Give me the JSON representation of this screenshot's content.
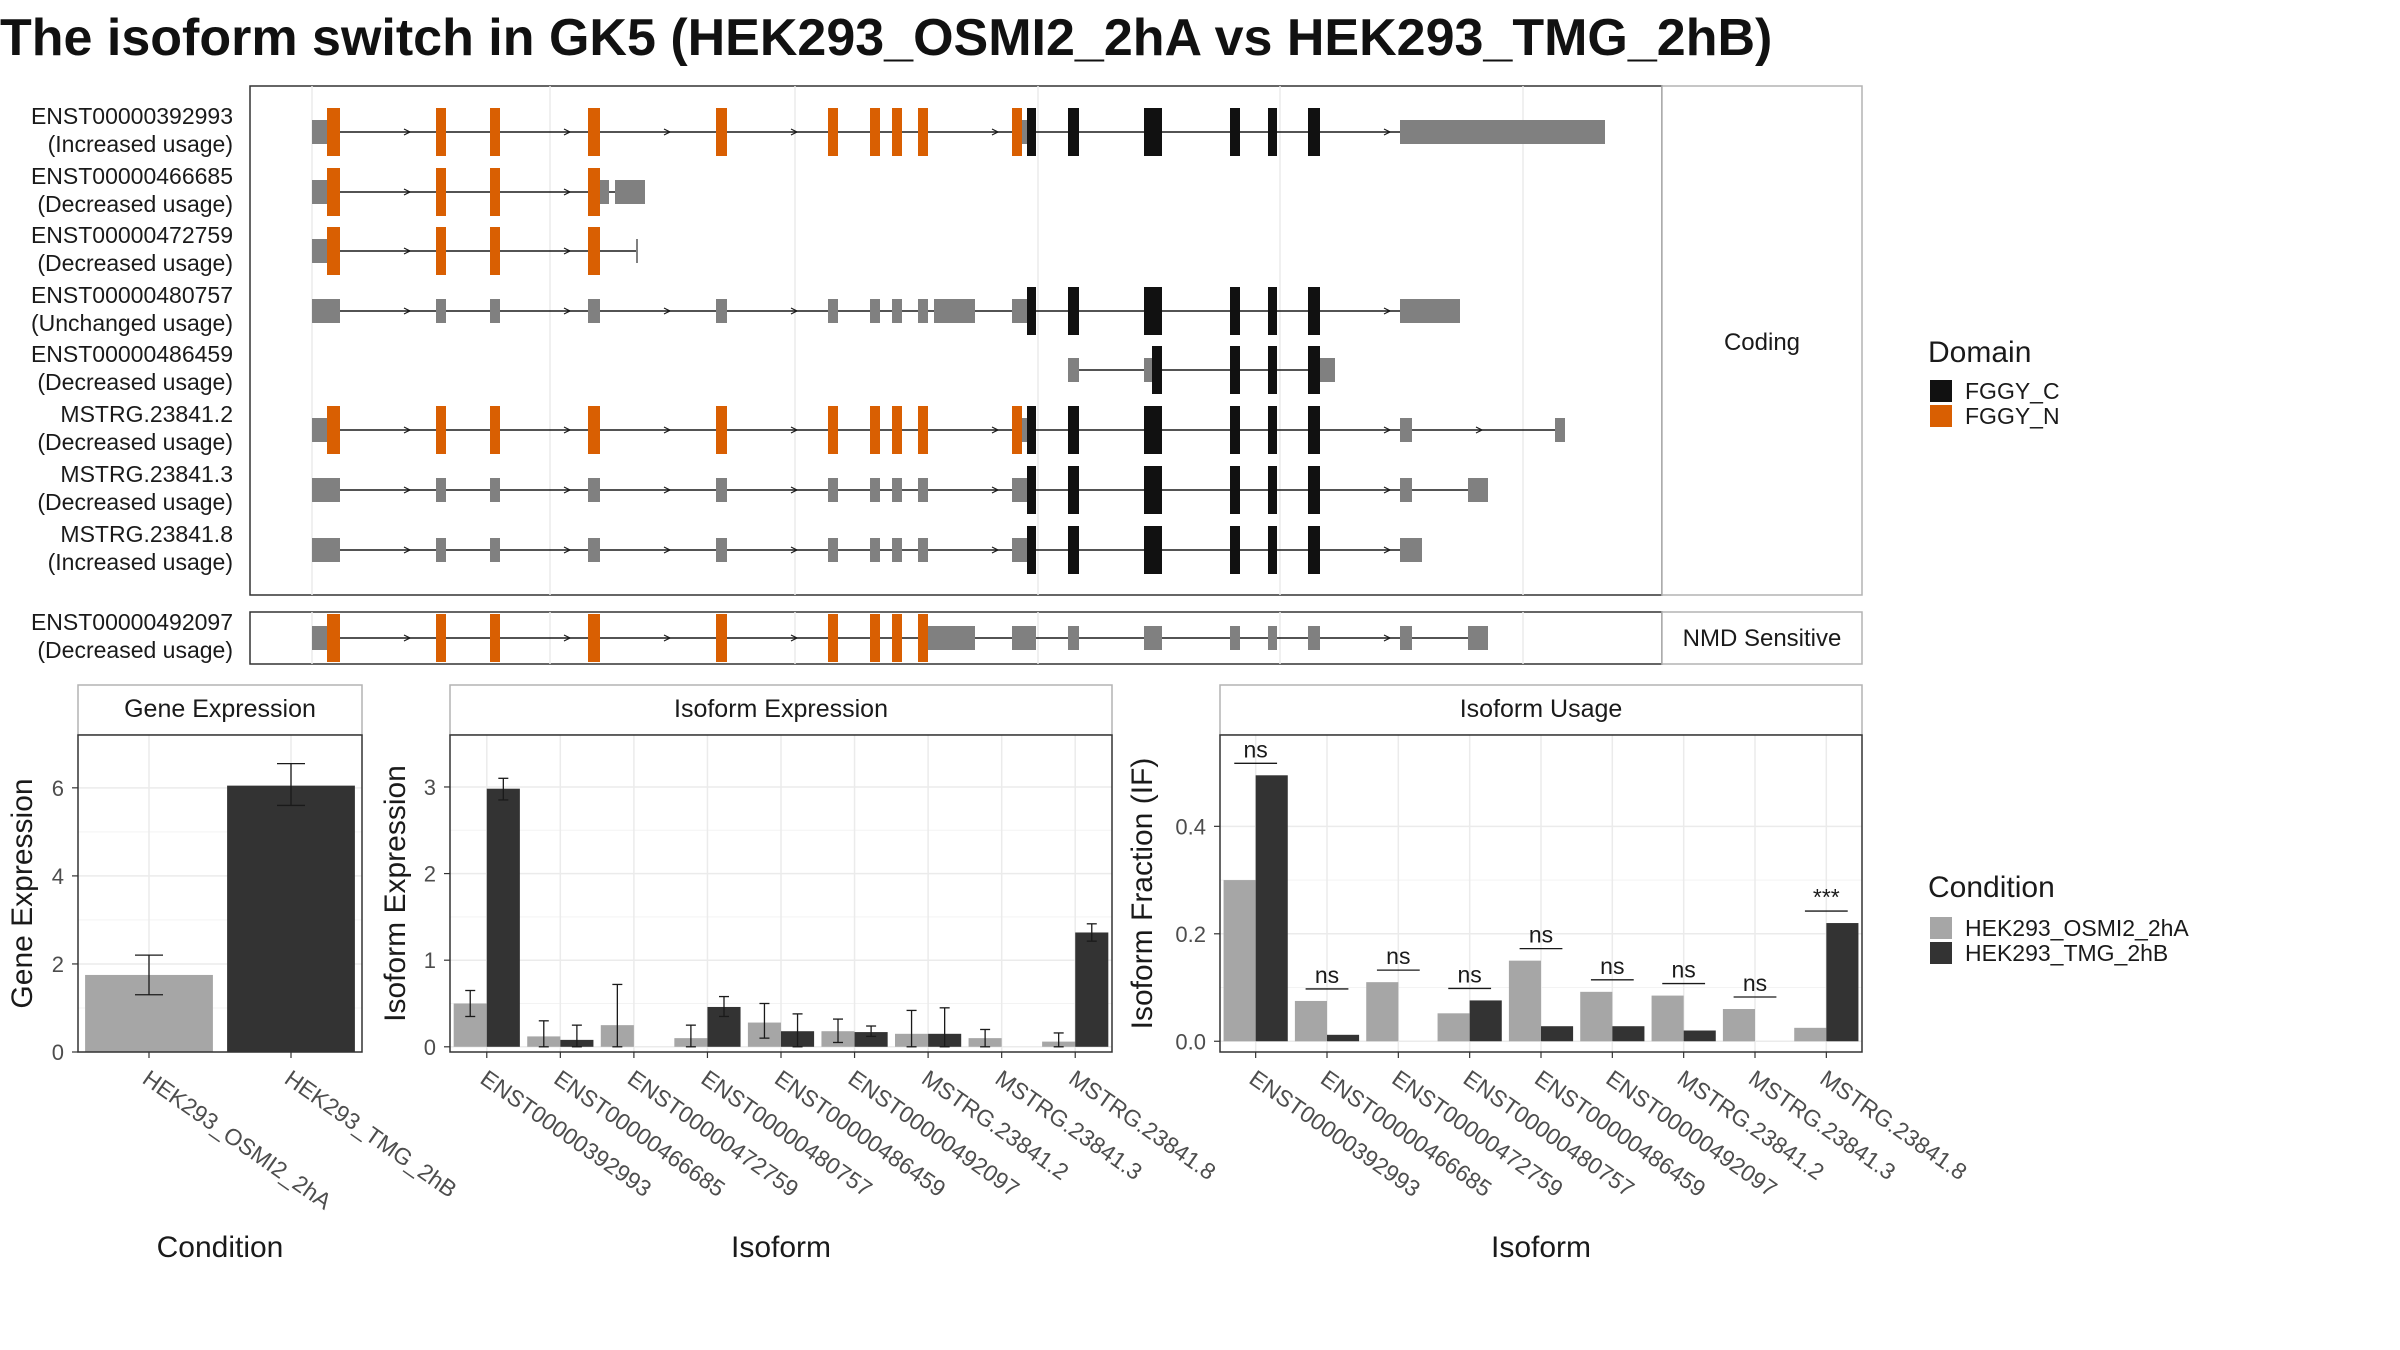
{
  "title": "The isoform switch in GK5 (HEK293_OSMI2_2hA vs HEK293_TMG_2hB)",
  "colors": {
    "fggy_c": "#111111",
    "fggy_n": "#d95f02",
    "utr": "#808080",
    "cond_a": "#a6a6a6",
    "cond_b": "#333333"
  },
  "structure": {
    "coding_label": "Coding",
    "nmd_label": "NMD Sensitive",
    "isoforms": [
      {
        "id": "ENST00000392993",
        "usage": "(Increased usage)"
      },
      {
        "id": "ENST00000466685",
        "usage": "(Decreased usage)"
      },
      {
        "id": "ENST00000472759",
        "usage": "(Decreased usage)"
      },
      {
        "id": "ENST00000480757",
        "usage": "(Unchanged usage)"
      },
      {
        "id": "ENST00000486459",
        "usage": "(Decreased usage)"
      },
      {
        "id": "MSTRG.23841.2",
        "usage": "(Decreased usage)"
      },
      {
        "id": "MSTRG.23841.3",
        "usage": "(Decreased usage)"
      },
      {
        "id": "MSTRG.23841.8",
        "usage": "(Increased usage)"
      }
    ],
    "nmd_isoform": {
      "id": "ENST00000492097",
      "usage": "(Decreased usage)"
    }
  },
  "legend_domain": {
    "title": "Domain",
    "items": [
      {
        "label": "FGGY_C",
        "color": "#111111"
      },
      {
        "label": "FGGY_N",
        "color": "#d95f02"
      }
    ]
  },
  "legend_condition": {
    "title": "Condition",
    "items": [
      {
        "label": "HEK293_OSMI2_2hA",
        "color": "#a6a6a6"
      },
      {
        "label": "HEK293_TMG_2hB",
        "color": "#333333"
      }
    ]
  },
  "chart_data": [
    {
      "type": "bar",
      "title": "Gene Expression",
      "xlabel": "Condition",
      "ylabel": "Gene Expression",
      "categories": [
        "HEK293_OSMI2_2hA",
        "HEK293_TMG_2hB"
      ],
      "values": [
        1.75,
        6.05
      ],
      "error_low": [
        1.3,
        5.6
      ],
      "error_high": [
        2.2,
        6.55
      ],
      "ylim": [
        0,
        7.2
      ],
      "yticks": [
        0,
        2,
        4,
        6
      ],
      "grid": true
    },
    {
      "type": "bar",
      "title": "Isoform Expression",
      "xlabel": "Isoform",
      "ylabel": "Isoform Expression",
      "categories": [
        "ENST00000392993",
        "ENST00000466685",
        "ENST00000472759",
        "ENST00000480757",
        "ENST00000486459",
        "ENST00000492097",
        "MSTRG.23841.2",
        "MSTRG.23841.3",
        "MSTRG.23841.8"
      ],
      "series": [
        {
          "name": "HEK293_OSMI2_2hA",
          "values": [
            0.5,
            0.12,
            0.25,
            0.1,
            0.28,
            0.18,
            0.15,
            0.1,
            0.06
          ],
          "error_low": [
            0.35,
            0.0,
            0.0,
            0.0,
            0.1,
            0.05,
            0.0,
            0.0,
            0.0
          ],
          "error_high": [
            0.65,
            0.3,
            0.72,
            0.25,
            0.5,
            0.32,
            0.42,
            0.2,
            0.16
          ]
        },
        {
          "name": "HEK293_TMG_2hB",
          "values": [
            2.98,
            0.08,
            0.0,
            0.46,
            0.18,
            0.17,
            0.15,
            0.0,
            1.32
          ],
          "error_low": [
            2.85,
            0.0,
            0.0,
            0.35,
            0.0,
            0.12,
            0.0,
            0.0,
            1.22
          ],
          "error_high": [
            3.1,
            0.25,
            0.0,
            0.58,
            0.38,
            0.24,
            0.45,
            0.0,
            1.42
          ]
        }
      ],
      "ylim": [
        -0.06,
        3.6
      ],
      "yticks": [
        0,
        1,
        2,
        3
      ],
      "grid": true
    },
    {
      "type": "bar",
      "title": "Isoform Usage",
      "xlabel": "Isoform",
      "ylabel": "Isoform Fraction (IF)",
      "categories": [
        "ENST00000392993",
        "ENST00000466685",
        "ENST00000472759",
        "ENST00000480757",
        "ENST00000486459",
        "ENST00000492097",
        "MSTRG.23841.2",
        "MSTRG.23841.3",
        "MSTRG.23841.8"
      ],
      "series": [
        {
          "name": "HEK293_OSMI2_2hA",
          "values": [
            0.3,
            0.075,
            0.11,
            0.052,
            0.15,
            0.092,
            0.085,
            0.06,
            0.025
          ]
        },
        {
          "name": "HEK293_TMG_2hB",
          "values": [
            0.495,
            0.012,
            0.0,
            0.076,
            0.028,
            0.028,
            0.02,
            0.0,
            0.22
          ]
        }
      ],
      "significance": [
        "ns",
        "ns",
        "ns",
        "ns",
        "ns",
        "ns",
        "ns",
        "ns",
        "***"
      ],
      "ylim": [
        -0.02,
        0.57
      ],
      "yticks": [
        0.0,
        0.2,
        0.4
      ],
      "grid": true
    }
  ]
}
